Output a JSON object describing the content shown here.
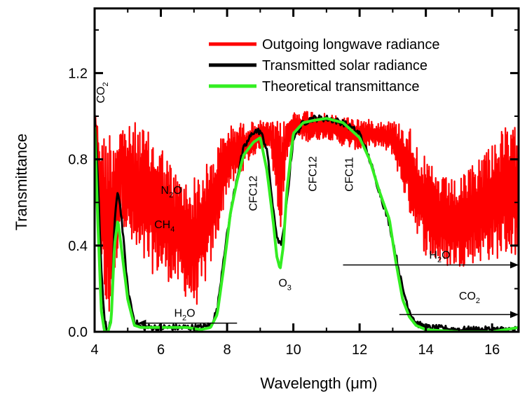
{
  "chart_data": {
    "type": "line",
    "xlabel": "Wavelength (μm)",
    "ylabel": "Transmittance",
    "xlim": [
      4,
      16.8
    ],
    "ylim": [
      0,
      1.5
    ],
    "x_ticks": [
      "4",
      "6",
      "8",
      "10",
      "12",
      "14",
      "16"
    ],
    "y_ticks": [
      "0.0",
      "0.4",
      "0.8",
      "1.2"
    ],
    "legend_position": "top-right",
    "series": [
      {
        "name": "Outgoing longwave radiance",
        "color": "#ff0000",
        "style": "noisy-band",
        "x": [
          4.0,
          4.1,
          4.2,
          4.3,
          4.4,
          4.5,
          4.6,
          4.8,
          5.0,
          5.3,
          5.6,
          6.0,
          6.4,
          6.8,
          7.0,
          7.2,
          7.5,
          7.8,
          8.0,
          8.3,
          8.6,
          9.0,
          9.3,
          9.6,
          9.8,
          10.0,
          10.5,
          11.0,
          11.5,
          12.0,
          12.5,
          13.0,
          13.5,
          14.0,
          14.5,
          15.0,
          15.5,
          16.0,
          16.4,
          16.8
        ],
        "lower": [
          1.0,
          0.72,
          0.35,
          0.08,
          0.0,
          0.1,
          0.2,
          0.55,
          0.42,
          0.3,
          0.28,
          0.25,
          0.22,
          0.15,
          0.1,
          0.15,
          0.3,
          0.5,
          0.65,
          0.7,
          0.78,
          0.85,
          0.86,
          0.45,
          0.8,
          0.9,
          0.88,
          0.9,
          0.86,
          0.84,
          0.86,
          0.82,
          0.55,
          0.35,
          0.3,
          0.3,
          0.32,
          0.33,
          0.35,
          0.35
        ],
        "upper": [
          1.05,
          0.95,
          0.9,
          0.93,
          0.97,
          0.95,
          0.96,
          0.98,
          0.95,
          0.98,
          0.93,
          0.88,
          0.75,
          0.7,
          0.72,
          0.75,
          0.8,
          0.9,
          0.95,
          0.97,
          0.97,
          0.98,
          0.97,
          0.98,
          0.98,
          1.02,
          1.03,
          1.01,
          1.0,
          0.99,
          0.98,
          0.98,
          0.96,
          0.8,
          0.72,
          0.7,
          0.8,
          0.9,
          0.95,
          0.95
        ]
      },
      {
        "name": "Transmitted solar radiance",
        "color": "#000000",
        "style": "line",
        "x": [
          4.0,
          4.1,
          4.2,
          4.3,
          4.4,
          4.5,
          4.6,
          4.7,
          4.8,
          5.0,
          5.2,
          5.4,
          5.8,
          6.2,
          6.8,
          7.2,
          7.5,
          7.7,
          7.9,
          8.1,
          8.3,
          8.5,
          8.8,
          9.0,
          9.2,
          9.4,
          9.5,
          9.6,
          9.7,
          9.8,
          10.0,
          10.3,
          10.6,
          11.0,
          11.5,
          12.0,
          12.3,
          12.6,
          12.9,
          13.1,
          13.3,
          13.5,
          13.7,
          14.0,
          15.0,
          16.0,
          16.8
        ],
        "y": [
          1.0,
          0.7,
          0.3,
          0.05,
          0.0,
          0.05,
          0.5,
          0.66,
          0.55,
          0.2,
          0.05,
          0.02,
          0.02,
          0.02,
          0.02,
          0.02,
          0.03,
          0.1,
          0.35,
          0.55,
          0.72,
          0.85,
          0.93,
          0.93,
          0.85,
          0.55,
          0.45,
          0.4,
          0.45,
          0.6,
          0.9,
          0.97,
          0.99,
          0.99,
          0.97,
          0.92,
          0.8,
          0.65,
          0.5,
          0.35,
          0.2,
          0.1,
          0.04,
          0.02,
          0.01,
          0.01,
          0.01
        ]
      },
      {
        "name": "Theoretical transmittance",
        "color": "#33ee22",
        "style": "line",
        "x": [
          4.0,
          4.1,
          4.2,
          4.3,
          4.4,
          4.5,
          4.6,
          4.7,
          4.8,
          5.0,
          5.2,
          5.4,
          5.8,
          6.2,
          6.8,
          7.2,
          7.5,
          7.7,
          7.9,
          8.1,
          8.3,
          8.5,
          8.8,
          9.0,
          9.2,
          9.4,
          9.5,
          9.6,
          9.7,
          9.8,
          10.0,
          10.3,
          10.6,
          11.0,
          11.5,
          12.0,
          12.3,
          12.6,
          12.9,
          13.1,
          13.3,
          13.5,
          13.7,
          14.0,
          15.0,
          16.0,
          16.8
        ],
        "y": [
          0.95,
          0.5,
          0.1,
          0.0,
          0.0,
          0.05,
          0.4,
          0.52,
          0.4,
          0.15,
          0.03,
          0.02,
          0.02,
          0.02,
          0.02,
          0.01,
          0.02,
          0.08,
          0.3,
          0.55,
          0.7,
          0.82,
          0.88,
          0.9,
          0.75,
          0.5,
          0.35,
          0.29,
          0.4,
          0.65,
          0.92,
          0.97,
          0.98,
          0.99,
          0.97,
          0.9,
          0.8,
          0.65,
          0.52,
          0.32,
          0.15,
          0.07,
          0.03,
          0.01,
          0.0,
          0.0,
          0.02
        ]
      }
    ],
    "annotations": [
      {
        "text": "CO",
        "sub": "2",
        "x": 4.3,
        "y": 1.06,
        "rotated": true
      },
      {
        "text": "N",
        "sub": "2",
        "tail": "O",
        "x": 6.0,
        "y": 0.64
      },
      {
        "text": "CH",
        "sub": "4",
        "x": 5.8,
        "y": 0.48
      },
      {
        "text": "CFC12",
        "x": 8.9,
        "y": 0.56,
        "rotated": true
      },
      {
        "text": "O",
        "sub": "3",
        "x": 9.55,
        "y": 0.21
      },
      {
        "text": "CFC12",
        "x": 10.7,
        "y": 0.65,
        "rotated": true
      },
      {
        "text": "CFC11",
        "x": 11.8,
        "y": 0.65,
        "rotated": true
      },
      {
        "text": "H",
        "sub": "2",
        "tail": "O",
        "x": 6.4,
        "y": 0.07
      },
      {
        "text": "H",
        "sub": "2",
        "tail": "O",
        "x": 14.1,
        "y": 0.34
      },
      {
        "text": "CO",
        "sub": "2",
        "x": 15.0,
        "y": 0.15
      }
    ],
    "arrows": [
      {
        "from": 8.3,
        "to": 5.3,
        "y": 0.04,
        "label_ref": 7
      },
      {
        "from": 11.5,
        "to": 16.8,
        "y": 0.31,
        "label_ref": 8
      },
      {
        "from": 13.2,
        "to": 16.8,
        "y": 0.08,
        "label_ref": 9
      }
    ]
  }
}
